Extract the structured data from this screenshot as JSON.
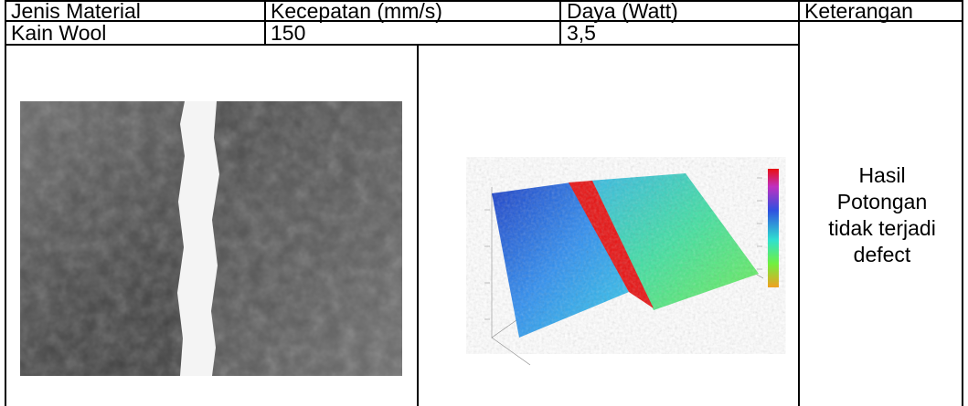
{
  "table": {
    "headers": [
      "Jenis Material",
      "Kecepatan (mm/s)",
      "Daya (Watt)",
      "Keterangan"
    ],
    "row": {
      "material": "Kain Wool",
      "kecepatan": "150",
      "daya": "3,5"
    },
    "keterangan_lines": [
      "Hasil",
      "Potongan",
      "tidak terjadi",
      "defect"
    ]
  },
  "images": {
    "photo": "fabric-cut-photo",
    "scan": "3d-surface-scan",
    "scan_colors": [
      "#1a3cc8",
      "#2e8ef0",
      "#34d0e8",
      "#40e0a0",
      "#6ef050",
      "#e81010"
    ]
  }
}
